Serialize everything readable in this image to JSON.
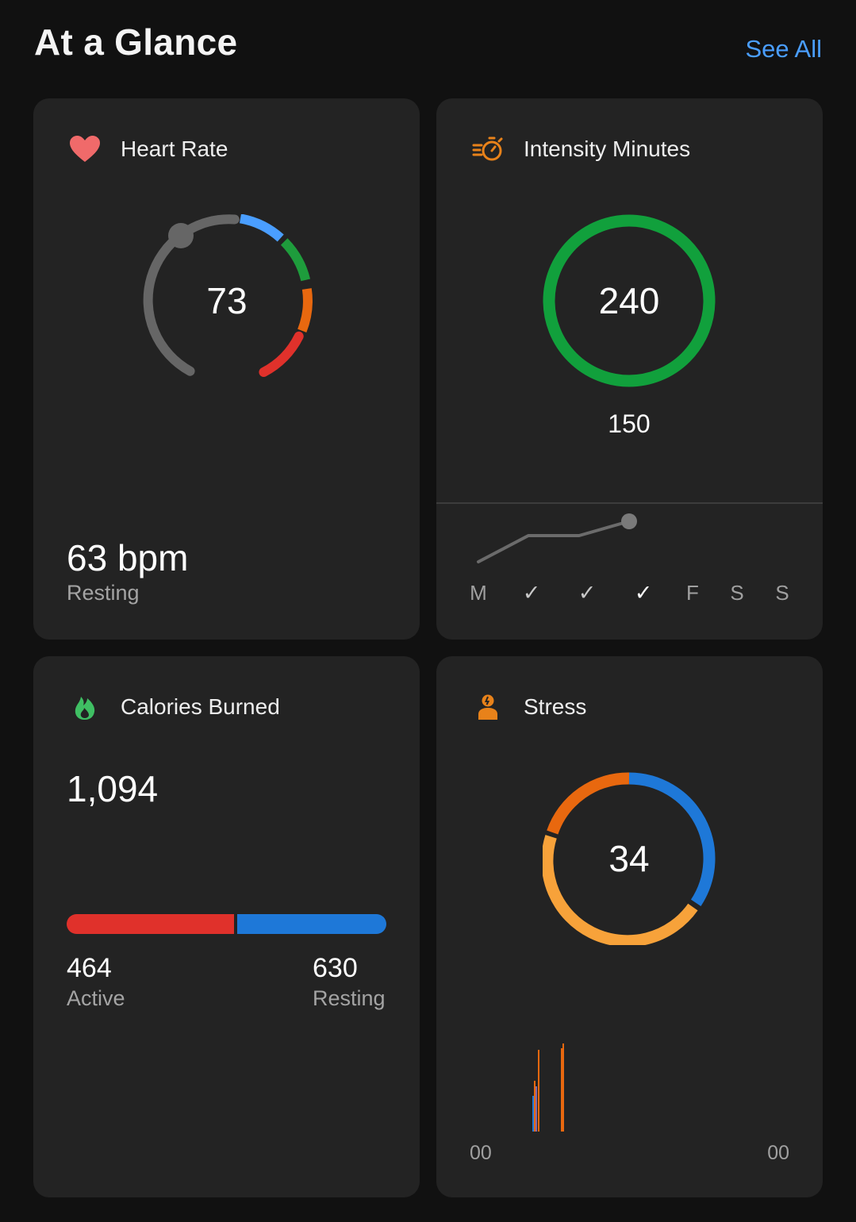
{
  "header": {
    "title": "At a Glance",
    "see_all": "See All"
  },
  "heart_rate": {
    "label": "Heart Rate",
    "icon": "heart-icon",
    "current": "73",
    "resting_value": "63 bpm",
    "resting_label": "Resting",
    "zone_colors": [
      "#4a9eff",
      "#1e9c3c",
      "#e8680f",
      "#e0312b"
    ]
  },
  "intensity": {
    "label": "Intensity Minutes",
    "icon": "stopwatch-icon",
    "value": "240",
    "goal": "150",
    "ring_color": "#11a03c",
    "days": [
      {
        "label": "M",
        "done": false
      },
      {
        "label": "✓",
        "done": true
      },
      {
        "label": "✓",
        "done": true
      },
      {
        "label": "✓",
        "done": true
      },
      {
        "label": "F",
        "done": false
      },
      {
        "label": "S",
        "done": false
      },
      {
        "label": "S",
        "done": false
      }
    ]
  },
  "calories": {
    "label": "Calories Burned",
    "icon": "flame-icon",
    "total": "1,094",
    "active_value": "464",
    "active_label": "Active",
    "resting_value": "630",
    "resting_label": "Resting",
    "active_color": "#e0312b",
    "resting_color": "#1e78d8"
  },
  "stress": {
    "label": "Stress",
    "icon": "stress-person-icon",
    "value": "34",
    "ring_colors": {
      "rest": "#1e78d8",
      "low": "#f7a23a",
      "medium": "#e8680f"
    },
    "axis_start": "00",
    "axis_end": "00"
  }
}
